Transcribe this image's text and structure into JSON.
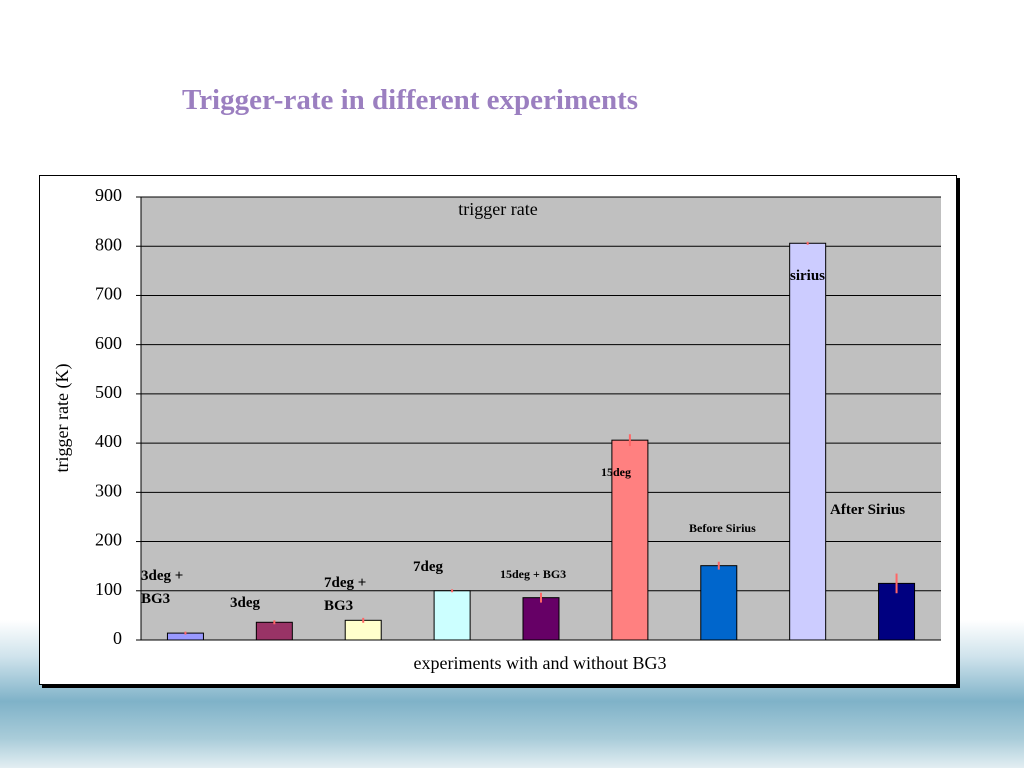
{
  "slide_title": "Trigger-rate in different experiments",
  "chart_data": {
    "type": "bar",
    "title": "trigger rate",
    "x_label": "experiments with and without BG3",
    "y_label": "trigger rate (K)",
    "categories": [
      "3deg + BG3",
      "3deg",
      "7deg + BG3",
      "7deg",
      "15deg + BG3",
      "15deg",
      "Before Sirius",
      "sirius",
      "After  Sirius"
    ],
    "values": [
      14,
      36,
      40,
      100,
      86,
      406,
      151,
      806,
      115
    ],
    "errors": [
      3,
      4,
      5,
      3,
      10,
      12,
      8,
      3,
      20
    ],
    "colors": [
      "#9999ff",
      "#993366",
      "#ffffcc",
      "#ccffff",
      "#660066",
      "#ff8080",
      "#0066cc",
      "#ccccff",
      "#000080"
    ],
    "error_color": "#ff6666",
    "ylim": [
      0,
      900
    ],
    "yticks": [
      0,
      100,
      200,
      300,
      400,
      500,
      600,
      700,
      800,
      900
    ],
    "grid": true
  }
}
